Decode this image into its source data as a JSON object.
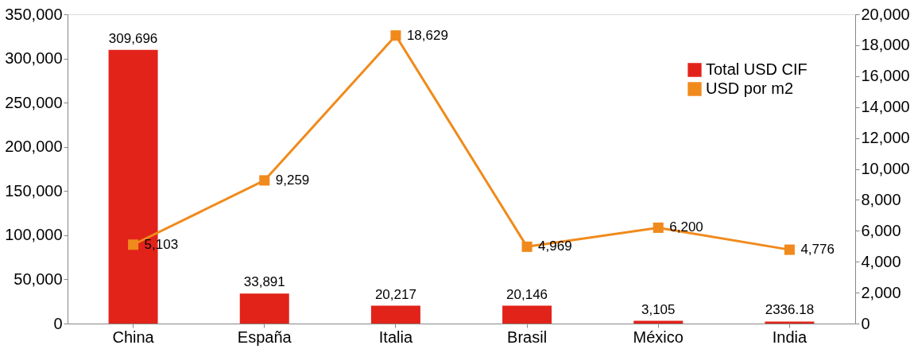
{
  "chart_data": {
    "type": "bar",
    "categories": [
      "China",
      "España",
      "Italia",
      "Brasil",
      "México",
      "India"
    ],
    "series": [
      {
        "name": "Total USD CIF",
        "color": "#e2231a",
        "values": [
          309696,
          33891,
          20217,
          20146,
          3105,
          2336.18
        ],
        "value_labels": [
          "309,696",
          "33,891",
          "20,217",
          "20,146",
          "3,105",
          "2336.18"
        ]
      },
      {
        "name": "USD por m2",
        "type": "line",
        "axis": "y2",
        "color": "#f08a1c",
        "marker": "square",
        "values": [
          5103,
          9259,
          18629,
          4969,
          6200,
          4776
        ],
        "value_labels": [
          "5,103",
          "9,259",
          "18,629",
          "4,969",
          "6,200",
          "4,776"
        ]
      }
    ],
    "ylim": [
      0,
      350000
    ],
    "yticks": [
      {
        "value": 0,
        "label": "0"
      },
      {
        "value": 50000,
        "label": "50,000"
      },
      {
        "value": 100000,
        "label": "100,000"
      },
      {
        "value": 150000,
        "label": "150,000"
      },
      {
        "value": 200000,
        "label": "200,000"
      },
      {
        "value": 250000,
        "label": "250,000"
      },
      {
        "value": 300000,
        "label": "300,000"
      },
      {
        "value": 350000,
        "label": "350,000"
      }
    ],
    "y2lim": [
      0,
      20000
    ],
    "y2ticks": [
      {
        "value": 0,
        "label": "0"
      },
      {
        "value": 2000,
        "label": "2,000"
      },
      {
        "value": 4000,
        "label": "4,000"
      },
      {
        "value": 6000,
        "label": "6,000"
      },
      {
        "value": 8000,
        "label": "8,000"
      },
      {
        "value": 10000,
        "label": "10,000"
      },
      {
        "value": 12000,
        "label": "12,000"
      },
      {
        "value": 14000,
        "label": "14,000"
      },
      {
        "value": 16000,
        "label": "16,000"
      },
      {
        "value": 18000,
        "label": "18,000"
      },
      {
        "value": 20000,
        "label": "20,000"
      }
    ],
    "grid": false,
    "legend": "top right"
  }
}
